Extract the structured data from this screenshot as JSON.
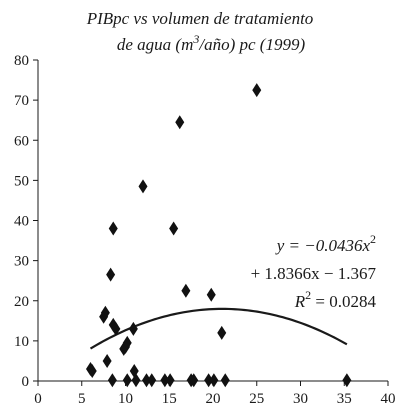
{
  "chart_data": {
    "type": "scatter",
    "title": {
      "line1": "PIBpc vs volumen de tratamiento",
      "line2_prefix": "de agua (m",
      "line2_sup": "3",
      "line2_suffix": "/año) pc (1999)"
    },
    "xlabel": "",
    "ylabel": "",
    "xlim": [
      0,
      40
    ],
    "ylim": [
      0,
      80
    ],
    "x_ticks": [
      0,
      5,
      10,
      15,
      20,
      25,
      30,
      35,
      40
    ],
    "y_ticks": [
      0,
      10,
      20,
      30,
      40,
      50,
      60,
      70,
      80
    ],
    "grid": false,
    "marker": "diamond",
    "points": [
      {
        "x": 6.0,
        "y": 3.0
      },
      {
        "x": 6.2,
        "y": 2.5
      },
      {
        "x": 7.5,
        "y": 16.0
      },
      {
        "x": 7.7,
        "y": 17.0
      },
      {
        "x": 7.9,
        "y": 5.0
      },
      {
        "x": 8.3,
        "y": 26.5
      },
      {
        "x": 8.6,
        "y": 38.0
      },
      {
        "x": 8.6,
        "y": 14.0
      },
      {
        "x": 8.9,
        "y": 13.0
      },
      {
        "x": 8.5,
        "y": 0.2
      },
      {
        "x": 9.8,
        "y": 8.0
      },
      {
        "x": 10.0,
        "y": 8.5
      },
      {
        "x": 10.2,
        "y": 9.5
      },
      {
        "x": 10.2,
        "y": 0.2
      },
      {
        "x": 10.9,
        "y": 13.0
      },
      {
        "x": 11.0,
        "y": 2.5
      },
      {
        "x": 11.2,
        "y": 0.2
      },
      {
        "x": 12.0,
        "y": 48.5
      },
      {
        "x": 12.4,
        "y": 0.2
      },
      {
        "x": 13.0,
        "y": 0.2
      },
      {
        "x": 14.5,
        "y": 0.2
      },
      {
        "x": 15.1,
        "y": 0.2
      },
      {
        "x": 15.5,
        "y": 38.0
      },
      {
        "x": 16.2,
        "y": 64.5
      },
      {
        "x": 16.9,
        "y": 22.5
      },
      {
        "x": 17.5,
        "y": 0.2
      },
      {
        "x": 17.8,
        "y": 0.2
      },
      {
        "x": 19.5,
        "y": 0.2
      },
      {
        "x": 19.8,
        "y": 21.5
      },
      {
        "x": 20.1,
        "y": 0.2
      },
      {
        "x": 21.0,
        "y": 12.0
      },
      {
        "x": 21.4,
        "y": 0.2
      },
      {
        "x": 25.0,
        "y": 72.5
      },
      {
        "x": 35.3,
        "y": 0.2
      }
    ],
    "trendline": {
      "type": "polynomial",
      "a": -0.0436,
      "b": 1.8366,
      "c": -1.367,
      "x_range": [
        6,
        35.3
      ],
      "equation_line1_prefix": "y = −0.0436x",
      "equation_line1_sup": "2",
      "equation_line2": "+ 1.8366x − 1.367",
      "r2_prefix": "R",
      "r2_sup": "2",
      "r2_suffix": " = 0.0284"
    }
  }
}
